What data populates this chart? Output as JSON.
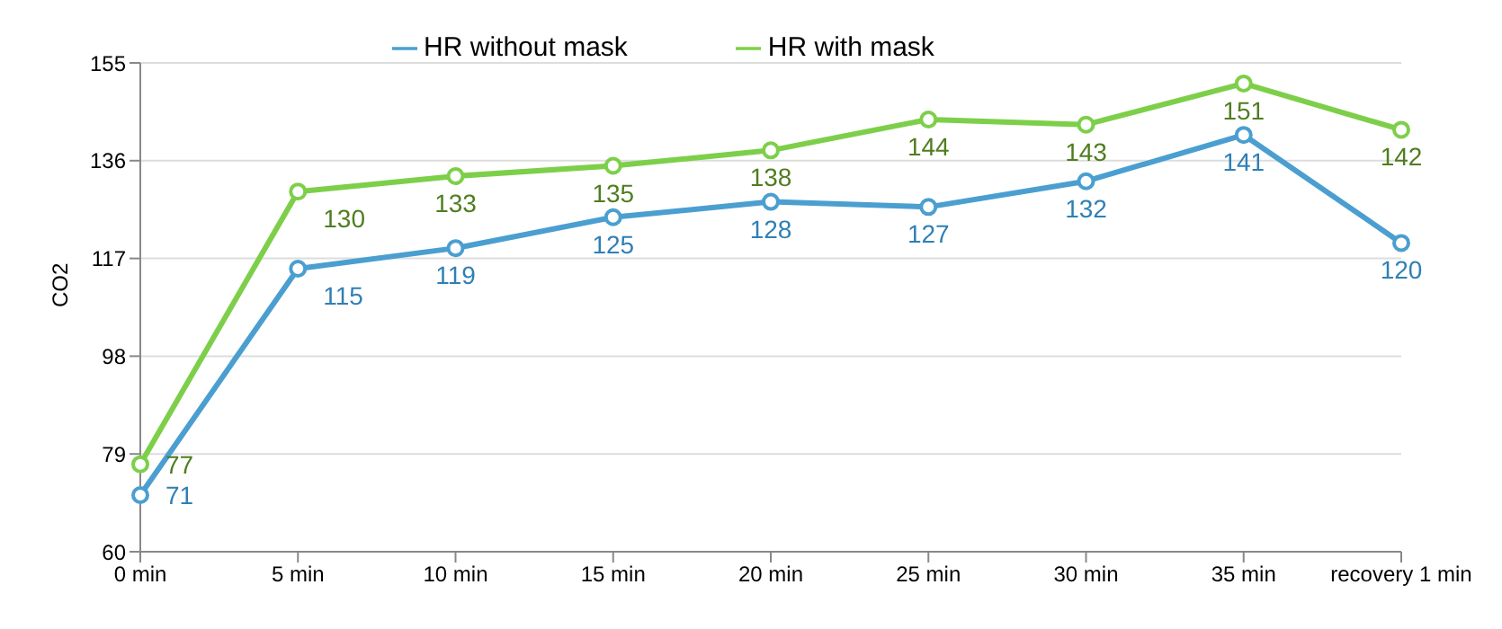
{
  "chart_data": {
    "type": "line",
    "ylabel": "CO2",
    "categories": [
      "0 min",
      "5 min",
      "10 min",
      "15 min",
      "20 min",
      "25 min",
      "30 min",
      "35 min",
      "recovery 1 min"
    ],
    "series": [
      {
        "name": "HR without mask",
        "color": "#4a9fd0",
        "values": [
          71,
          115,
          119,
          125,
          128,
          127,
          132,
          141,
          120
        ]
      },
      {
        "name": "HR with mask",
        "color": "#7dcf4a",
        "values": [
          77,
          130,
          133,
          135,
          138,
          144,
          143,
          151,
          142
        ]
      }
    ],
    "ylim": [
      60,
      155
    ],
    "yticks": [
      60,
      79,
      98,
      117,
      136,
      155
    ],
    "grid": "y",
    "legend": "top",
    "marker": "circle",
    "line_style": "solid",
    "data_labels": true
  }
}
